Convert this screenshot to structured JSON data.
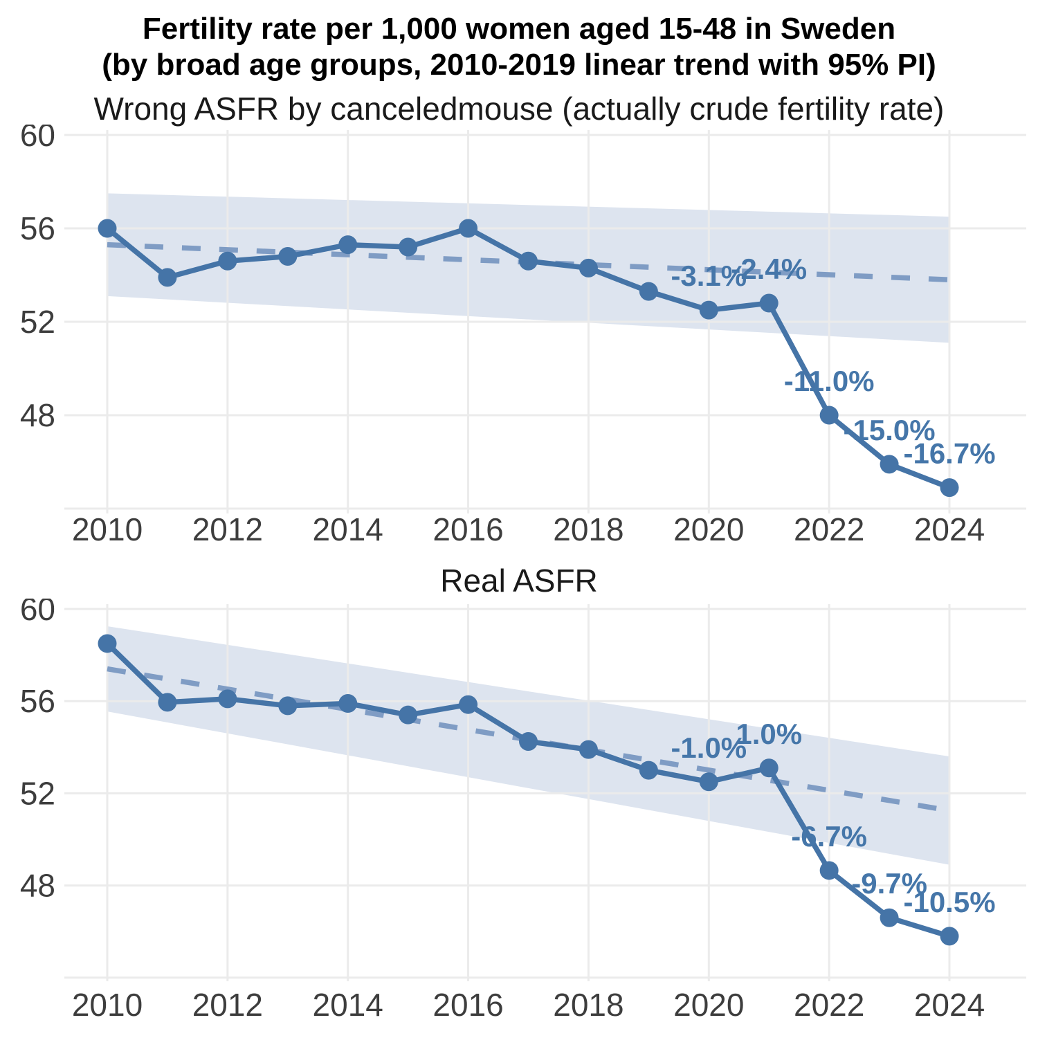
{
  "title": {
    "line1": "Fertility rate per 1,000 women aged 15-48 in Sweden",
    "line2": "(by broad age groups, 2010-2019 linear trend with 95% PI)"
  },
  "colors": {
    "line": "#4574a7",
    "marker": "#4574a7",
    "trend_dashed": "#7f9cc4",
    "band_fill": "#dde4ef",
    "grid": "#ebebeb",
    "tick_text": "#3d3d3d",
    "annotation_text": "#4576a9"
  },
  "x_axis": {
    "ticks": [
      2010,
      2012,
      2014,
      2016,
      2018,
      2020,
      2022,
      2024
    ]
  },
  "y_axis": {
    "ticks": [
      60,
      56,
      52,
      48
    ],
    "grid_values": [
      60,
      56,
      52,
      48,
      44
    ]
  },
  "chart_data": [
    {
      "type": "line",
      "title": "Wrong ASFR by canceledmouse (actually crude fertility rate)",
      "x": [
        2010,
        2011,
        2012,
        2013,
        2014,
        2015,
        2016,
        2017,
        2018,
        2019,
        2020,
        2021,
        2022,
        2023,
        2024
      ],
      "series": [
        {
          "name": "crude fertility rate",
          "values": [
            56.0,
            53.9,
            54.6,
            54.8,
            55.3,
            55.2,
            56.0,
            54.6,
            54.3,
            53.3,
            52.5,
            52.8,
            48.0,
            45.9,
            44.9
          ]
        }
      ],
      "trend": {
        "name": "2010-2019 linear trend",
        "x": [
          2010,
          2024
        ],
        "values": [
          55.3,
          53.8
        ]
      },
      "band": {
        "name": "95% PI",
        "x": [
          2010,
          2024
        ],
        "upper": [
          57.5,
          56.5
        ],
        "lower": [
          53.1,
          51.1
        ]
      },
      "annotations": [
        {
          "year": 2020,
          "text": "-3.1%"
        },
        {
          "year": 2021,
          "text": "-2.4%"
        },
        {
          "year": 2022,
          "text": "-11.0%"
        },
        {
          "year": 2023,
          "text": "-15.0%"
        },
        {
          "year": 2024,
          "text": "-16.7%"
        }
      ],
      "xlim": [
        2009.3,
        2025.3
      ],
      "ylim": [
        43.8,
        60.4
      ],
      "grid": true,
      "legend": "none"
    },
    {
      "type": "line",
      "title": "Real ASFR",
      "x": [
        2010,
        2011,
        2012,
        2013,
        2014,
        2015,
        2016,
        2017,
        2018,
        2019,
        2020,
        2021,
        2022,
        2023,
        2024
      ],
      "series": [
        {
          "name": "real ASFR",
          "values": [
            58.5,
            55.95,
            56.1,
            55.8,
            55.9,
            55.4,
            55.85,
            54.25,
            53.9,
            53.0,
            52.5,
            53.1,
            48.65,
            46.6,
            45.8
          ]
        }
      ],
      "trend": {
        "name": "2010-2019 linear trend",
        "x": [
          2010,
          2024
        ],
        "values": [
          57.4,
          51.25
        ]
      },
      "band": {
        "name": "95% PI",
        "x": [
          2010,
          2024
        ],
        "upper": [
          59.25,
          53.6
        ],
        "lower": [
          55.55,
          48.9
        ]
      },
      "annotations": [
        {
          "year": 2020,
          "text": "-1.0%"
        },
        {
          "year": 2021,
          "text": "1.0%"
        },
        {
          "year": 2022,
          "text": "-6.7%"
        },
        {
          "year": 2023,
          "text": "-9.7%"
        },
        {
          "year": 2024,
          "text": "-10.5%"
        }
      ],
      "xlim": [
        2009.3,
        2025.3
      ],
      "ylim": [
        43.8,
        60.4
      ],
      "grid": true,
      "legend": "none"
    }
  ]
}
